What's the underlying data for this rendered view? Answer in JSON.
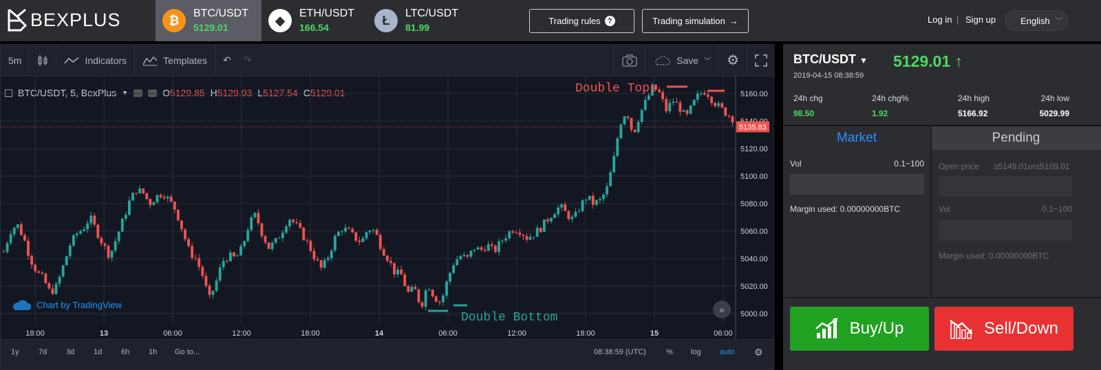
{
  "brand": {
    "name": "BEXPLUS"
  },
  "pairs": [
    {
      "symbol": "BTC/USDT",
      "price": "5129.01",
      "icon": "bitcoin-icon",
      "color": "#f7931a",
      "glyph": "₿"
    },
    {
      "symbol": "ETH/USDT",
      "price": "166.54",
      "icon": "ethereum-icon",
      "color": "#ffffff",
      "glyph": "◆"
    },
    {
      "symbol": "LTC/USDT",
      "price": "81.99",
      "icon": "litecoin-icon",
      "color": "#a6b5c9",
      "glyph": "Ł"
    }
  ],
  "header": {
    "trading_rules": "Trading rules",
    "trading_simulation": "Trading simulation",
    "login": "Log in",
    "signup": "Sign up",
    "language": "English",
    "separator": "|"
  },
  "chart_toolbar": {
    "interval": "5m",
    "indicators": "Indicators",
    "templates": "Templates",
    "save": "Save"
  },
  "legend": {
    "title": "BTC/USDT, 5, BexPlus",
    "o_label": "O",
    "o": "5129.85",
    "h_label": "H",
    "h": "5129.93",
    "l_label": "L",
    "l": "5127.54",
    "c_label": "C",
    "c": "5129.01"
  },
  "annotations": {
    "double_tops": "Double Tops",
    "double_bottom": "Double Bottom",
    "attribution": "Chart by TradingView",
    "current_price_tag": "5135.83"
  },
  "bottom_bar": {
    "ranges": [
      "1y",
      "7d",
      "3d",
      "1d",
      "6h",
      "1h",
      "Go to..."
    ],
    "time": "08:38:59 (UTC)",
    "percent": "%",
    "log": "log",
    "auto": "auto"
  },
  "chart_data": {
    "type": "candlestick",
    "ylim": [
      4995,
      5170
    ],
    "yticks": [
      "5160.00",
      "5140.00",
      "5120.00",
      "5100.00",
      "5080.00",
      "5060.00",
      "5040.00",
      "5020.00",
      "5000.00"
    ],
    "xticks": [
      "18:00",
      "13",
      "06:00",
      "12:00",
      "18:00",
      "14",
      "06:00",
      "12:00",
      "18:00",
      "15",
      "06:00"
    ],
    "series": [
      {
        "values": [
          5045,
          5060,
          5065,
          5055,
          5040,
          5030,
          5025,
          5015,
          5020,
          5035,
          5050,
          5058,
          5062,
          5070,
          5060,
          5050,
          5042,
          5055,
          5068,
          5082,
          5090,
          5088,
          5080,
          5085,
          5088,
          5082,
          5075,
          5060,
          5045,
          5040,
          5028,
          5010,
          5022,
          5038,
          5042,
          5040,
          5048,
          5065,
          5072,
          5058,
          5048,
          5052,
          5060,
          5070,
          5065,
          5058,
          5050,
          5040,
          5032,
          5042,
          5055,
          5062,
          5060,
          5055,
          5052,
          5062,
          5060,
          5048,
          5040,
          5030,
          5028,
          5015,
          5018,
          5005,
          5022,
          5012,
          5008,
          5025,
          5038,
          5042,
          5040,
          5048,
          5046,
          5050,
          5045,
          5052,
          5058,
          5062,
          5060,
          5055,
          5058,
          5062,
          5068,
          5074,
          5078,
          5072,
          5068,
          5078,
          5085,
          5080,
          5082,
          5090,
          5110,
          5138,
          5148,
          5130,
          5145,
          5155,
          5165,
          5160,
          5148,
          5155,
          5150,
          5142,
          5152,
          5160,
          5162,
          5155,
          5150,
          5146,
          5142
        ]
      }
    ],
    "current_price": 5135.83
  },
  "right_panel": {
    "pair": "BTC/USDT",
    "price": "5129.01",
    "arrow": "↑",
    "timestamp": "2019-04-15 08:38:59",
    "stats": [
      {
        "label": "24h chg",
        "value": "98.50",
        "color": "#4cd964"
      },
      {
        "label": "24h chg%",
        "value": "1.92",
        "color": "#4cd964"
      },
      {
        "label": "24h high",
        "value": "5166.92",
        "color": "#ffffff"
      },
      {
        "label": "24h low",
        "value": "5029.99",
        "color": "#ffffff"
      }
    ],
    "tabs": {
      "market": "Market",
      "pending": "Pending"
    },
    "market": {
      "vol_label": "Vol",
      "vol_range": "0.1~100",
      "margin": "Margin used: 0.00000000BTC"
    },
    "pending": {
      "open_price_label": "Open price",
      "open_price_range": "≥5149.01or≤5109.01",
      "vol_label": "Vol",
      "vol_range": "0.1~100",
      "margin": "Margin used: 0.00000000BTC"
    },
    "buy": "Buy/Up",
    "sell": "Sell/Down",
    "buy_color": "#21a121",
    "sell_color": "#e83232"
  }
}
